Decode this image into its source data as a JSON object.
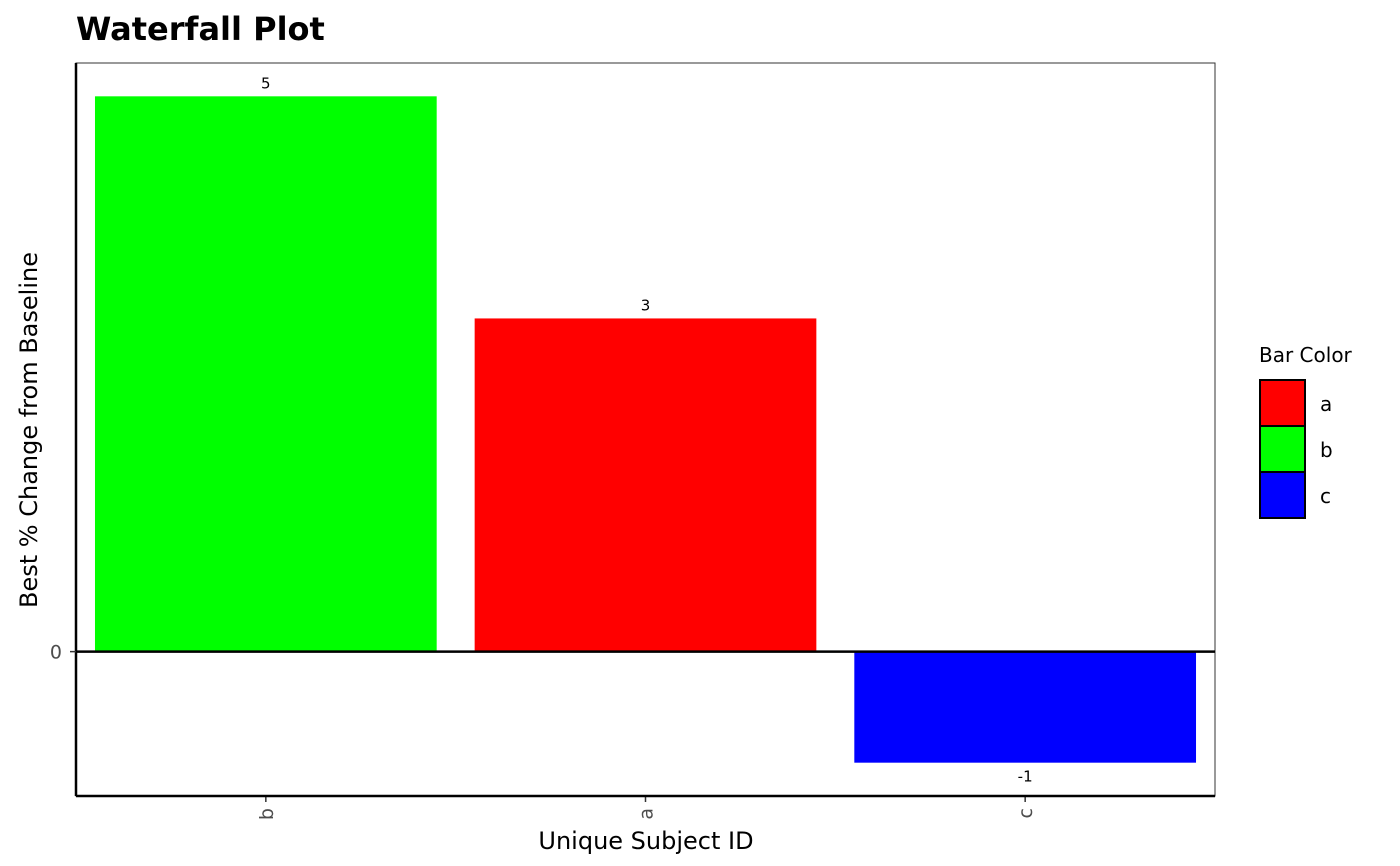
{
  "chart_data": {
    "type": "bar",
    "title": "Waterfall Plot",
    "xlabel": "Unique Subject ID",
    "ylabel": "Best % Change from Baseline",
    "categories": [
      "b",
      "a",
      "c"
    ],
    "values": [
      5,
      3,
      -1
    ],
    "data_labels": [
      "5",
      "3",
      "-1"
    ],
    "bar_color_groups": [
      "b",
      "a",
      "c"
    ],
    "ylim": [
      -1.3,
      5.3
    ],
    "yticks": [
      0
    ],
    "ytick_labels": [
      "0"
    ],
    "grid": false,
    "legend": {
      "title": "Bar Color",
      "placement": "right",
      "entries": [
        {
          "label": "a",
          "color": "#FF0000"
        },
        {
          "label": "b",
          "color": "#00FF00"
        },
        {
          "label": "c",
          "color": "#0000FF"
        }
      ]
    }
  }
}
